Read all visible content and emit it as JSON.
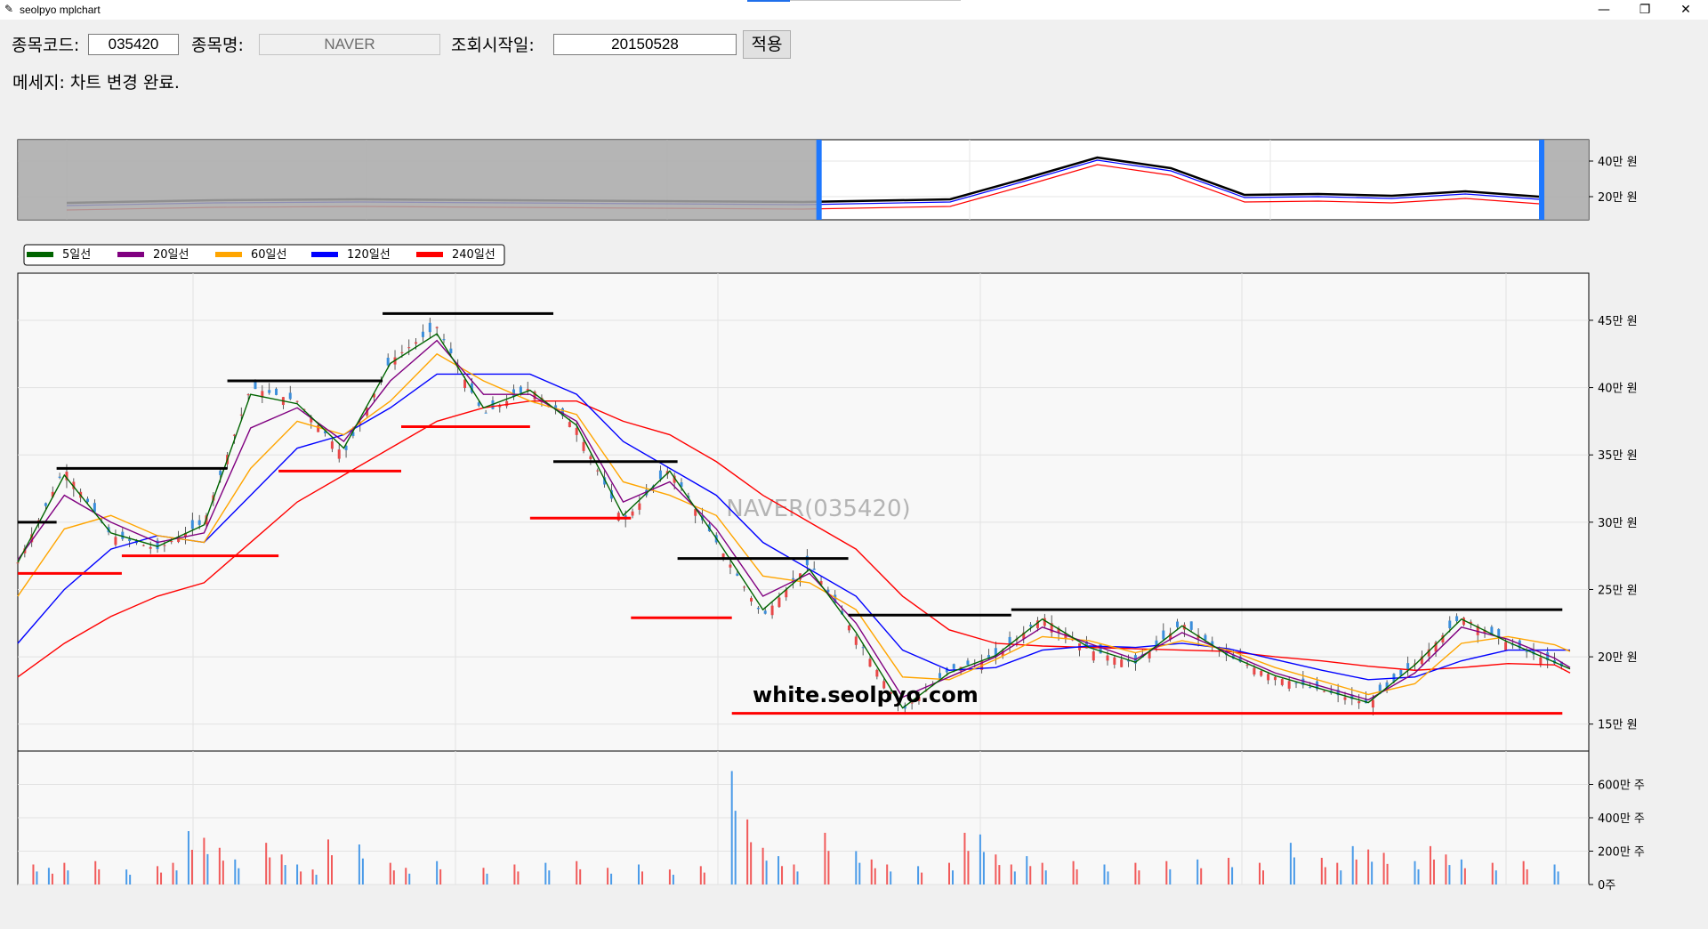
{
  "window": {
    "title": "seolpyo mplchart",
    "minimize": "—",
    "restore": "❐",
    "close": "✕",
    "app_icon": "feather-icon"
  },
  "form": {
    "code_label": "종목코드:",
    "code_value": "035420",
    "name_label": "종목명:",
    "name_value": "NAVER",
    "start_label": "조회시작일:",
    "start_value": "20150528",
    "apply_button": "적용"
  },
  "message": "메세지: 차트 변경 완료.",
  "legend": [
    {
      "label": "5일선",
      "color": "#006400"
    },
    {
      "label": "20일선",
      "color": "#800080"
    },
    {
      "label": "60일선",
      "color": "#FFA500"
    },
    {
      "label": "120일선",
      "color": "#0000FF"
    },
    {
      "label": "240일선",
      "color": "#FF0000"
    }
  ],
  "watermark": "NAVER(035420)",
  "site_label": "white.seolpyo.com",
  "chart_data": [
    {
      "type": "line",
      "name": "overview-slider",
      "yticks": [
        "40만 원",
        "20만 원"
      ],
      "tick_values": [
        400000,
        200000
      ],
      "ylim": [
        70000,
        520000
      ],
      "x": [
        0,
        10,
        20,
        30,
        40,
        50,
        60,
        65,
        70,
        75,
        80,
        85,
        90,
        95,
        100
      ],
      "close": [
        165000,
        180000,
        185000,
        180000,
        175000,
        170000,
        185000,
        300000,
        420000,
        360000,
        210000,
        215000,
        205000,
        230000,
        200000
      ],
      "selected_range": [
        0.51,
        0.97
      ],
      "colors": {
        "close": "#000000",
        "ma240": "#FF0000",
        "ma120": "#0000FF",
        "selection_handle": "#1E78FF"
      }
    },
    {
      "type": "candlestick",
      "name": "price-chart",
      "yticks": [
        "45만 원",
        "40만 원",
        "35만 원",
        "30만 원",
        "25만 원",
        "20만 원",
        "15만 원"
      ],
      "tick_values": [
        450000,
        400000,
        350000,
        300000,
        250000,
        200000,
        150000
      ],
      "ylim": [
        130000,
        485000
      ],
      "x": [
        0,
        3,
        6,
        9,
        12,
        15,
        18,
        21,
        24,
        27,
        30,
        33,
        36,
        39,
        42,
        45,
        48,
        51,
        54,
        57,
        60,
        63,
        66,
        69,
        72,
        75,
        78,
        81,
        84,
        87,
        90,
        93,
        96,
        99,
        100
      ],
      "close": [
        270000,
        340000,
        290000,
        280000,
        300000,
        400000,
        390000,
        350000,
        420000,
        445000,
        380000,
        400000,
        370000,
        300000,
        340000,
        285000,
        230000,
        270000,
        215000,
        160000,
        190000,
        200000,
        230000,
        205000,
        195000,
        225000,
        200000,
        185000,
        175000,
        165000,
        195000,
        230000,
        210000,
        195000,
        190000
      ],
      "ma5": [
        270000,
        335000,
        292000,
        282000,
        298000,
        395000,
        388000,
        355000,
        418000,
        440000,
        385000,
        398000,
        372000,
        305000,
        338000,
        288000,
        235000,
        265000,
        218000,
        162000,
        188000,
        201000,
        228000,
        207000,
        196000,
        223000,
        201000,
        186000,
        176000,
        166000,
        194000,
        228000,
        211000,
        196000,
        191000
      ],
      "ma20": [
        272000,
        320000,
        300000,
        285000,
        292000,
        370000,
        385000,
        360000,
        405000,
        435000,
        395000,
        395000,
        375000,
        315000,
        330000,
        295000,
        245000,
        262000,
        225000,
        170000,
        185000,
        200000,
        222000,
        210000,
        198000,
        218000,
        203000,
        188000,
        178000,
        168000,
        188000,
        222000,
        213000,
        199000,
        192000
      ],
      "ma60": [
        245000,
        295000,
        305000,
        290000,
        285000,
        340000,
        375000,
        365000,
        390000,
        425000,
        405000,
        390000,
        380000,
        330000,
        320000,
        305000,
        260000,
        255000,
        235000,
        185000,
        183000,
        198000,
        215000,
        212000,
        203000,
        212000,
        205000,
        192000,
        182000,
        172000,
        180000,
        210000,
        215000,
        209000,
        204000
      ],
      "ma120": [
        210000,
        250000,
        280000,
        290000,
        285000,
        320000,
        355000,
        365000,
        385000,
        410000,
        410000,
        410000,
        395000,
        360000,
        340000,
        320000,
        285000,
        265000,
        245000,
        205000,
        190000,
        192000,
        205000,
        208000,
        207000,
        210000,
        206000,
        198000,
        190000,
        183000,
        185000,
        197000,
        205000,
        205000,
        205000
      ],
      "ma240": [
        185000,
        210000,
        230000,
        245000,
        255000,
        285000,
        315000,
        335000,
        355000,
        375000,
        385000,
        390000,
        390000,
        375000,
        365000,
        345000,
        320000,
        300000,
        280000,
        245000,
        220000,
        210000,
        208000,
        207000,
        206000,
        205000,
        204000,
        200000,
        197000,
        193000,
        190000,
        192000,
        195000,
        194000,
        188000
      ],
      "resistance_levels": [
        {
          "x": [
            0,
            2.5
          ],
          "y": 300000
        },
        {
          "x": [
            2.5,
            13.5
          ],
          "y": 340000
        },
        {
          "x": [
            13.5,
            23.5
          ],
          "y": 405000
        },
        {
          "x": [
            23.5,
            34.5
          ],
          "y": 455000
        },
        {
          "x": [
            34.5,
            42.5
          ],
          "y": 345000
        },
        {
          "x": [
            42.5,
            53.5
          ],
          "y": 273000
        },
        {
          "x": [
            53.5,
            64
          ],
          "y": 231000
        },
        {
          "x": [
            64,
            99.5
          ],
          "y": 235000
        }
      ],
      "support_levels": [
        {
          "x": [
            0,
            6.7
          ],
          "y": 262000
        },
        {
          "x": [
            6.7,
            16.8
          ],
          "y": 275000
        },
        {
          "x": [
            16.8,
            24.7
          ],
          "y": 338000
        },
        {
          "x": [
            24.7,
            33
          ],
          "y": 371000
        },
        {
          "x": [
            33,
            39.5
          ],
          "y": 303000
        },
        {
          "x": [
            39.5,
            46
          ],
          "y": 229000
        },
        {
          "x": [
            46,
            99.5
          ],
          "y": 158000
        }
      ]
    },
    {
      "type": "bar",
      "name": "volume-chart",
      "yticks": [
        "600만 주",
        "400만 주",
        "200만 주",
        "0주"
      ],
      "tick_values": [
        6000000,
        4000000,
        2000000,
        0
      ],
      "ylim": [
        0,
        8000000
      ],
      "x": [
        1,
        2,
        3,
        5,
        7,
        9,
        10,
        11,
        12,
        13,
        14,
        16,
        17,
        18,
        19,
        20,
        22,
        24,
        25,
        27,
        30,
        32,
        34,
        36,
        38,
        40,
        42,
        44,
        46,
        47,
        48,
        49,
        50,
        52,
        54,
        55,
        56,
        58,
        60,
        61,
        62,
        63,
        64,
        65,
        66,
        68,
        70,
        72,
        74,
        76,
        78,
        80,
        82,
        84,
        85,
        86,
        87,
        88,
        90,
        91,
        92,
        93,
        95,
        97,
        99
      ],
      "values": [
        1200000,
        1000000,
        1300000,
        1400000,
        900000,
        1100000,
        1300000,
        3200000,
        2800000,
        2200000,
        1500000,
        2500000,
        1800000,
        1200000,
        900000,
        2700000,
        2400000,
        1300000,
        1000000,
        1400000,
        1000000,
        1200000,
        1300000,
        1400000,
        1000000,
        1200000,
        900000,
        1100000,
        6800000,
        3900000,
        2200000,
        1700000,
        1200000,
        3100000,
        2000000,
        1500000,
        1200000,
        1100000,
        1300000,
        3100000,
        3000000,
        1800000,
        1200000,
        1700000,
        1300000,
        1400000,
        1200000,
        1300000,
        1400000,
        1500000,
        1600000,
        1300000,
        2500000,
        1600000,
        1300000,
        2300000,
        2100000,
        1900000,
        1400000,
        2300000,
        1800000,
        1500000,
        1300000,
        1400000,
        1200000
      ],
      "up_color": "#F15A5A",
      "down_color": "#4B9BE8"
    }
  ]
}
